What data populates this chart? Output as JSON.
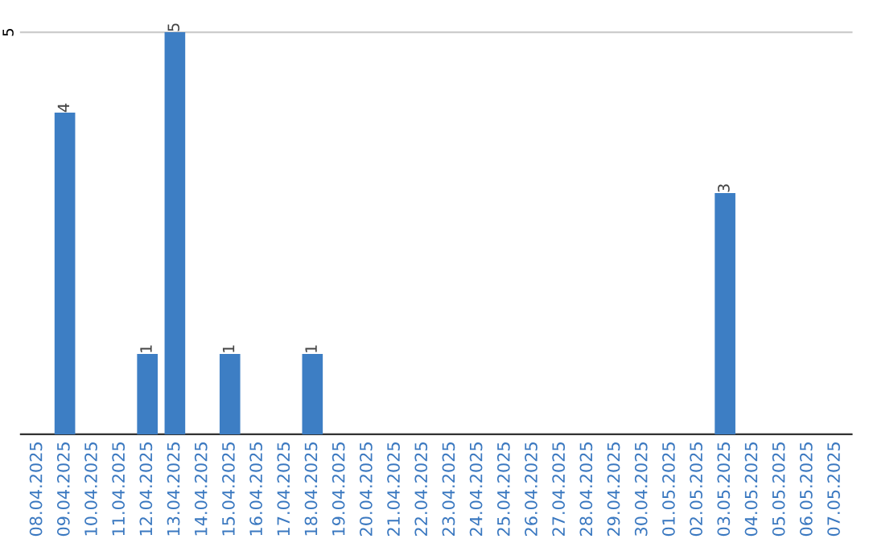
{
  "chart_data": {
    "type": "bar",
    "categories": [
      "08.04.2025",
      "09.04.2025",
      "10.04.2025",
      "11.04.2025",
      "12.04.2025",
      "13.04.2025",
      "14.04.2025",
      "15.04.2025",
      "16.04.2025",
      "17.04.2025",
      "18.04.2025",
      "19.04.2025",
      "20.04.2025",
      "21.04.2025",
      "22.04.2025",
      "23.04.2025",
      "24.04.2025",
      "25.04.2025",
      "26.04.2025",
      "27.04.2025",
      "28.04.2025",
      "29.04.2025",
      "30.04.2025",
      "01.05.2025",
      "02.05.2025",
      "03.05.2025",
      "04.05.2025",
      "05.05.2025",
      "06.05.2025",
      "07.05.2025"
    ],
    "values": [
      0,
      4,
      0,
      0,
      1,
      5,
      0,
      1,
      0,
      0,
      1,
      0,
      0,
      0,
      0,
      0,
      0,
      0,
      0,
      0,
      0,
      0,
      0,
      0,
      0,
      3,
      0,
      0,
      0,
      0
    ],
    "value_labels": [
      null,
      "4",
      null,
      null,
      "1",
      "5",
      null,
      "1",
      null,
      null,
      "1",
      null,
      null,
      null,
      null,
      null,
      null,
      null,
      null,
      null,
      null,
      null,
      null,
      null,
      null,
      "3",
      null,
      null,
      null,
      null
    ],
    "color": "#3d7ec4",
    "ylim": [
      0,
      5
    ],
    "yticks": [
      {
        "value": 0,
        "label": null
      },
      5
    ],
    "grid": "y"
  }
}
